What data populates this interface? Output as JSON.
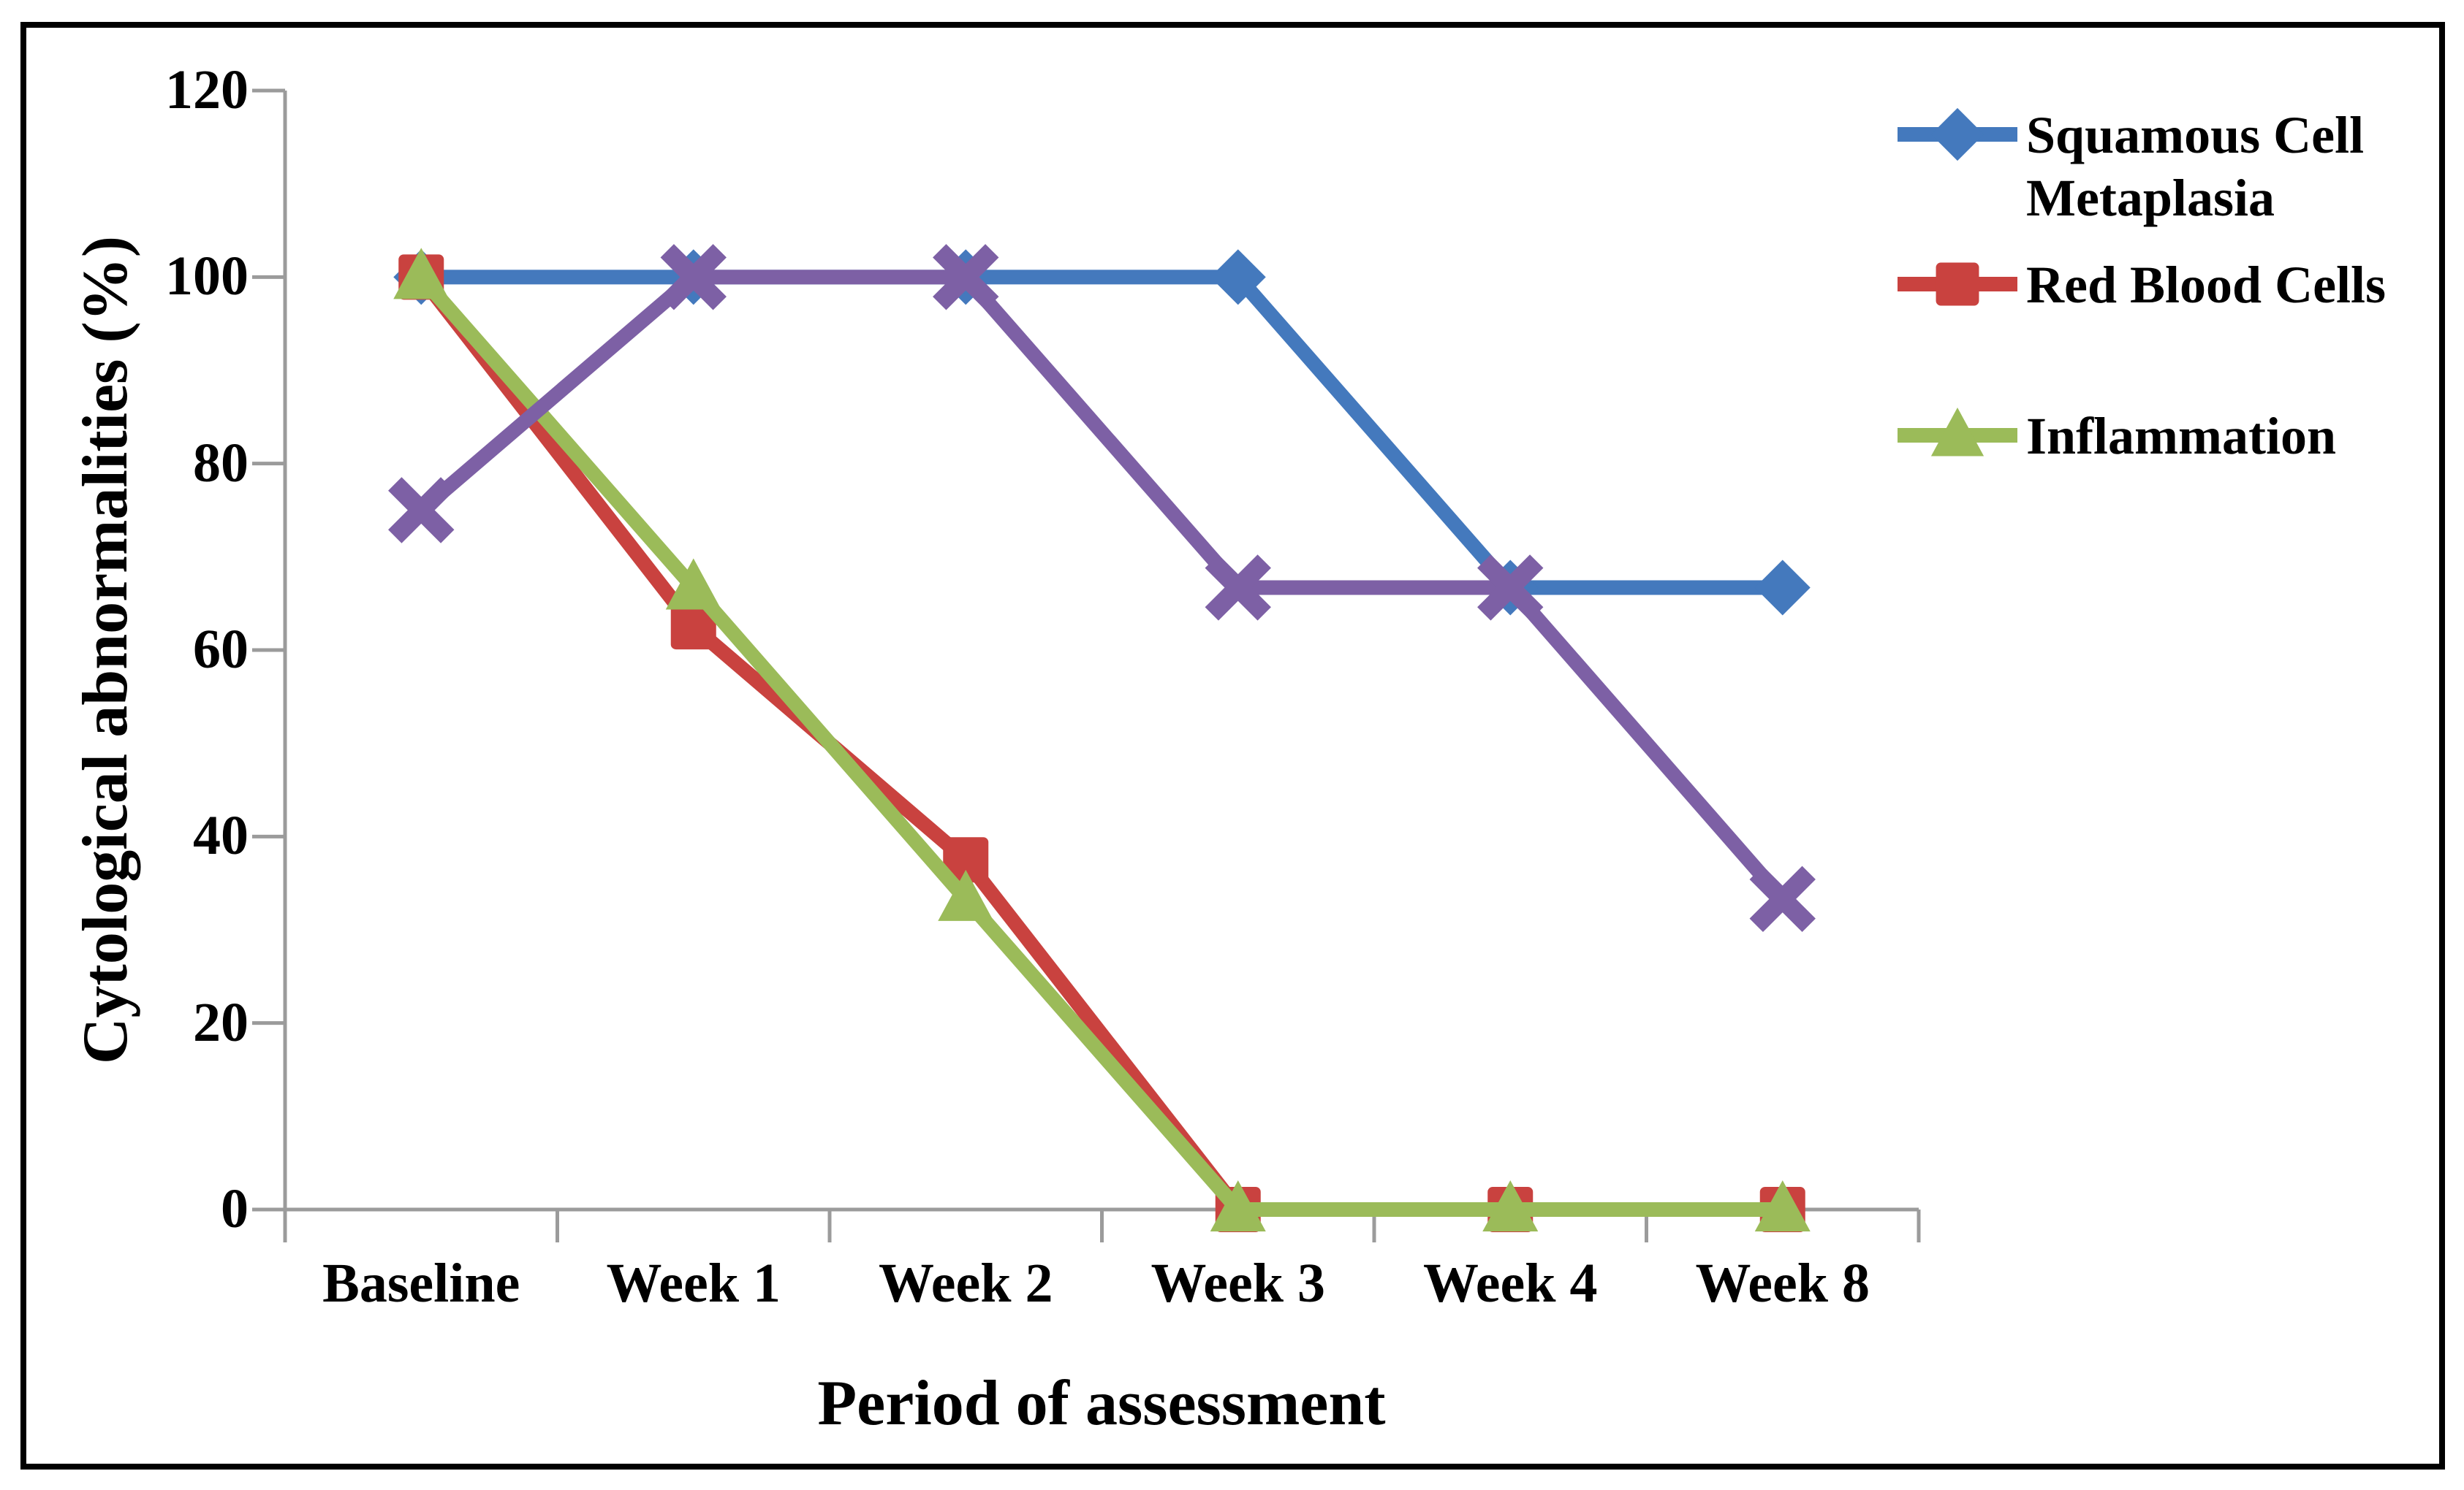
{
  "figure": {
    "background": "#ffffff",
    "border_color": "#000000",
    "axis_color": "#9B9B9B"
  },
  "y_axis": {
    "title": "Cytological abnormalities (%)",
    "tick_labels": [
      "120",
      "100",
      "80",
      "60",
      "40",
      "20",
      "0"
    ],
    "tick_values": [
      120,
      100,
      80,
      60,
      40,
      20,
      0
    ]
  },
  "x_axis": {
    "title": "Period of assessment",
    "categories": [
      "Baseline",
      "Week 1",
      "Week 2",
      "Week 3",
      "Week 4",
      "Week 8"
    ]
  },
  "legend": {
    "entries": [
      {
        "label": "Squamous Cell Metaplasia",
        "marker": "diamond",
        "color": "#4479BD"
      },
      {
        "label": "Red Blood Cells",
        "marker": "square",
        "color": "#C9423F"
      },
      {
        "label": "Inflammation",
        "marker": "triangle",
        "color": "#9BBB59"
      }
    ]
  },
  "chart_data": {
    "type": "line",
    "title": "",
    "xlabel": "Period of assessment",
    "ylabel": "Cytological abnormalities (%)",
    "categories": [
      "Baseline",
      "Week 1",
      "Week 2",
      "Week 3",
      "Week 4",
      "Week 8"
    ],
    "ylim": [
      0,
      120
    ],
    "ytick_step": 20,
    "grid": false,
    "legend_position": "right",
    "series": [
      {
        "name": "Squamous Cell Metaplasia",
        "marker": "diamond",
        "color": "#4479BD",
        "in_legend": true,
        "values": [
          100,
          100,
          100,
          100,
          66.7,
          66.7
        ]
      },
      {
        "name": "Red Blood Cells",
        "marker": "square",
        "color": "#C9423F",
        "in_legend": true,
        "values": [
          100,
          62.5,
          37.5,
          0,
          0,
          0
        ]
      },
      {
        "name": "Inflammation",
        "marker": "triangle",
        "color": "#9BBB59",
        "in_legend": true,
        "values": [
          100,
          66.7,
          33.3,
          0,
          0,
          0
        ]
      },
      {
        "name": "",
        "marker": "x",
        "color": "#7D60A5",
        "in_legend": false,
        "values": [
          75,
          100,
          100,
          66.7,
          66.7,
          33.3
        ]
      }
    ]
  }
}
